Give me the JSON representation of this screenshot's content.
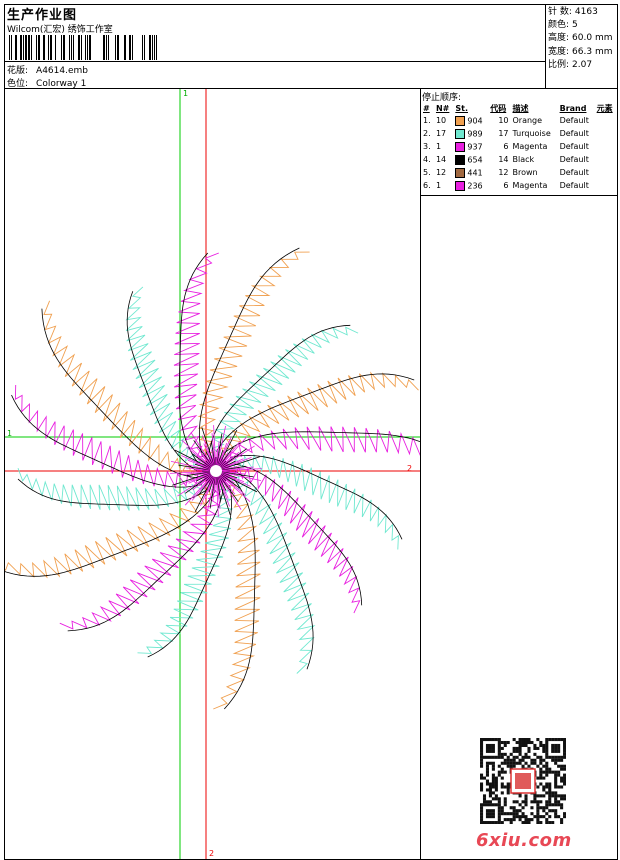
{
  "header": {
    "title": "生产作业图",
    "studio": "Wilcom(汇宏) 绣饰工作室",
    "design_label": "花版:",
    "design_file": "A4614.emb",
    "colorway_label": "色位:",
    "colorway": "Colorway 1"
  },
  "stats": [
    {
      "label": "针 数:",
      "value": "4163"
    },
    {
      "label": "颜色:",
      "value": "5"
    },
    {
      "label": "高度:",
      "value": "60.0 mm"
    },
    {
      "label": "宽度:",
      "value": "66.3 mm"
    },
    {
      "label": "比例:",
      "value": "2.07"
    }
  ],
  "stop_sequence": {
    "title": "停止顺序:",
    "headers": [
      "#",
      "N#",
      "St.",
      "代码",
      "描述",
      "Brand",
      "元素"
    ],
    "rows": [
      {
        "idx": "1.",
        "n": "10",
        "color": "#f0a050",
        "code": "904",
        "st": "10",
        "desc": "Orange",
        "brand": "Default"
      },
      {
        "idx": "2.",
        "n": "17",
        "color": "#70e8d0",
        "code": "989",
        "st": "17",
        "desc": "Turquoise",
        "brand": "Default"
      },
      {
        "idx": "3.",
        "n": "1",
        "color": "#e820e0",
        "code": "937",
        "st": "6",
        "desc": "Magenta",
        "brand": "Default"
      },
      {
        "idx": "4.",
        "n": "14",
        "color": "#000000",
        "code": "654",
        "st": "14",
        "desc": "Black",
        "brand": "Default"
      },
      {
        "idx": "5.",
        "n": "12",
        "color": "#a06840",
        "code": "441",
        "st": "12",
        "desc": "Brown",
        "brand": "Default"
      },
      {
        "idx": "6.",
        "n": "1",
        "color": "#e820e0",
        "code": "236",
        "st": "6",
        "desc": "Magenta",
        "brand": "Default"
      }
    ]
  },
  "guides": {
    "green_v": "1",
    "green_h": "1",
    "red_h": "2",
    "red_v": "2"
  },
  "petal_colors": {
    "orange": "#f0a050",
    "turquoise": "#70e8d0",
    "magenta": "#e820e0",
    "black": "#000000"
  },
  "footer": {
    "site": "6xiu.com"
  }
}
